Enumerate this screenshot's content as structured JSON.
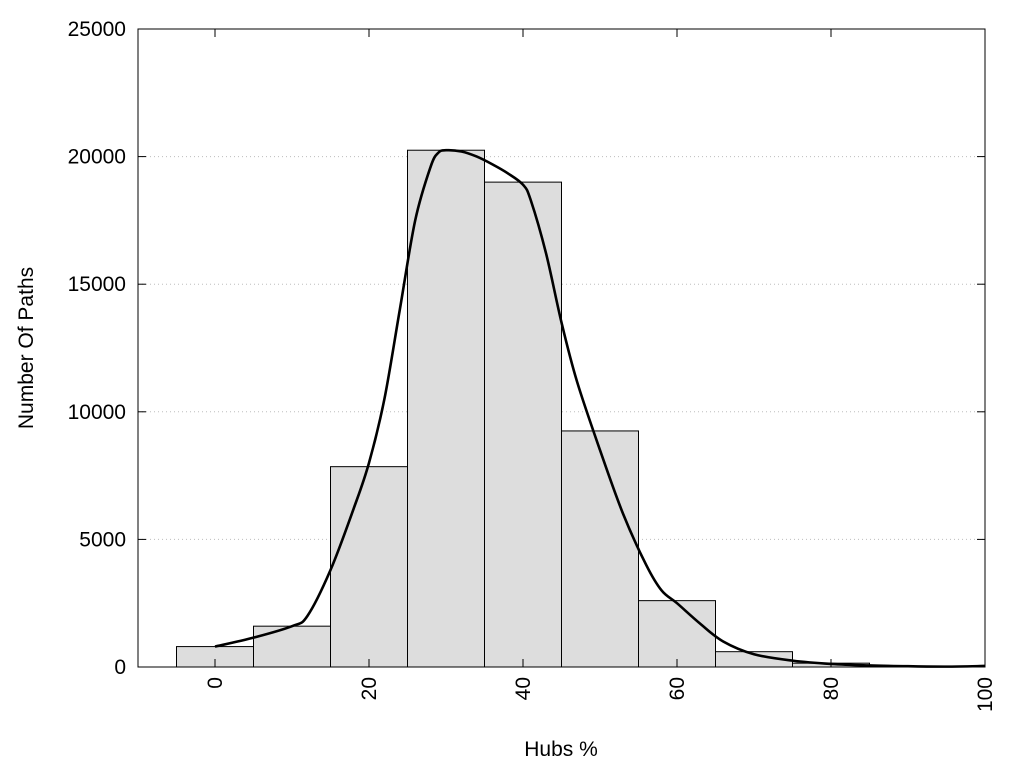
{
  "chart_data": {
    "type": "bar",
    "title": "",
    "xlabel": "Hubs %",
    "ylabel": "Number Of Paths",
    "xlim": [
      -10,
      100
    ],
    "ylim": [
      0,
      25000
    ],
    "x_ticks": [
      0,
      20,
      40,
      60,
      80,
      100
    ],
    "y_ticks": [
      0,
      5000,
      10000,
      15000,
      20000,
      25000
    ],
    "grid": "horizontal-dotted",
    "bar_fill": "#dddddd",
    "bar_stroke": "#000000",
    "curve_color": "#000000",
    "bins": [
      {
        "from": -5,
        "to": 5,
        "value": 800
      },
      {
        "from": 5,
        "to": 15,
        "value": 1600
      },
      {
        "from": 15,
        "to": 25,
        "value": 7850
      },
      {
        "from": 25,
        "to": 35,
        "value": 20250
      },
      {
        "from": 35,
        "to": 45,
        "value": 19000
      },
      {
        "from": 45,
        "to": 55,
        "value": 9250
      },
      {
        "from": 55,
        "to": 65,
        "value": 2600
      },
      {
        "from": 65,
        "to": 75,
        "value": 600
      },
      {
        "from": 75,
        "to": 85,
        "value": 150
      },
      {
        "from": 85,
        "to": 95,
        "value": 30
      }
    ],
    "series": [
      {
        "x": [
          0,
          5,
          10,
          12,
          15,
          18,
          20,
          22,
          24,
          26,
          28,
          29,
          30,
          32,
          34,
          36,
          38,
          40,
          41,
          43,
          45,
          47,
          50,
          53,
          56,
          58,
          60,
          63,
          66,
          70,
          75,
          80,
          85,
          90,
          95,
          100
        ],
        "y": [
          800,
          1150,
          1600,
          2000,
          3800,
          6200,
          8000,
          10500,
          14000,
          17500,
          19600,
          20150,
          20250,
          20200,
          20000,
          19700,
          19350,
          18900,
          18300,
          16200,
          13500,
          11200,
          8500,
          6000,
          4000,
          3000,
          2500,
          1700,
          1000,
          500,
          250,
          120,
          60,
          30,
          15,
          40
        ]
      }
    ]
  }
}
